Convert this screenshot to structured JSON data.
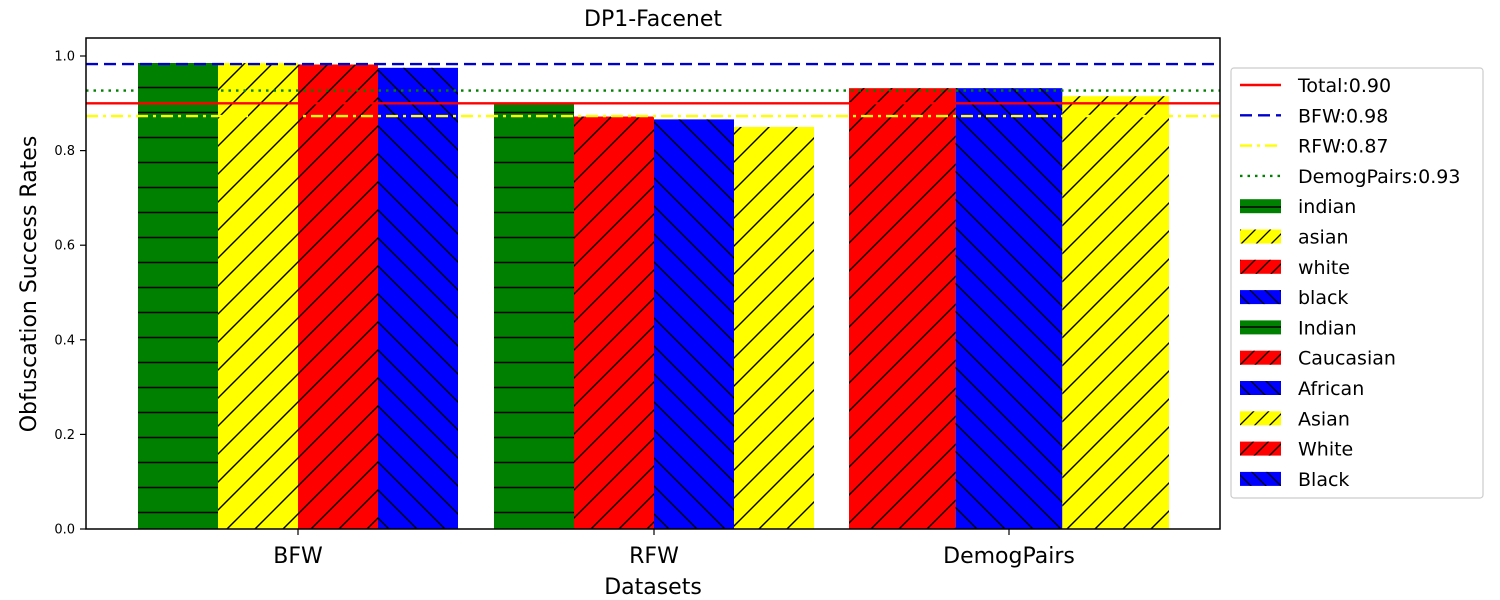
{
  "chart_data": {
    "type": "bar",
    "title": "DP1-Facenet",
    "xlabel": "Datasets",
    "ylabel": "Obfuscation Success Rates",
    "ylim": [
      0,
      1.03
    ],
    "yticks": [
      "0.0",
      "0.2",
      "0.4",
      "0.6",
      "0.8",
      "1.0"
    ],
    "grid": false,
    "legend_position": "right",
    "groups": [
      {
        "name": "BFW",
        "bars": [
          {
            "label": "indian",
            "value": 0.985,
            "color": "#008000",
            "hatch": "horizontal"
          },
          {
            "label": "asian",
            "value": 0.985,
            "color": "#ffff00",
            "hatch": "forward"
          },
          {
            "label": "white",
            "value": 0.982,
            "color": "#ff0000",
            "hatch": "forward"
          },
          {
            "label": "black",
            "value": 0.975,
            "color": "#0000ff",
            "hatch": "back"
          }
        ]
      },
      {
        "name": "RFW",
        "bars": [
          {
            "label": "Indian",
            "value": 0.9,
            "color": "#008000",
            "hatch": "horizontal"
          },
          {
            "label": "Caucasian",
            "value": 0.872,
            "color": "#ff0000",
            "hatch": "forward"
          },
          {
            "label": "African",
            "value": 0.866,
            "color": "#0000ff",
            "hatch": "back"
          },
          {
            "label": "Asian",
            "value": 0.85,
            "color": "#ffff00",
            "hatch": "forward"
          }
        ]
      },
      {
        "name": "DemogPairs",
        "bars": [
          {
            "label": "White",
            "value": 0.932,
            "color": "#ff0000",
            "hatch": "forward"
          },
          {
            "label": "Black",
            "value": 0.932,
            "color": "#0000ff",
            "hatch": "back"
          },
          {
            "label": "Asian",
            "value": 0.915,
            "color": "#ffff00",
            "hatch": "forward"
          }
        ]
      }
    ],
    "reference_lines": [
      {
        "label": "Total:0.90",
        "value": 0.9,
        "color": "#ff0000",
        "style": "solid"
      },
      {
        "label": "BFW:0.98",
        "value": 0.983,
        "color": "#0000cc",
        "style": "dashed"
      },
      {
        "label": "RFW:0.87",
        "value": 0.873,
        "color": "#ffff00",
        "style": "dashdot"
      },
      {
        "label": "DemogPairs:0.93",
        "value": 0.927,
        "color": "#008000",
        "style": "dotted"
      }
    ],
    "legend_entries": [
      {
        "label": "Total:0.90",
        "kind": "line",
        "ref": 0
      },
      {
        "label": "BFW:0.98",
        "kind": "line",
        "ref": 1
      },
      {
        "label": "RFW:0.87",
        "kind": "line",
        "ref": 2
      },
      {
        "label": "DemogPairs:0.93",
        "kind": "line",
        "ref": 3
      },
      {
        "label": "indian",
        "kind": "patch",
        "color": "#008000",
        "hatch": "horizontal"
      },
      {
        "label": "asian",
        "kind": "patch",
        "color": "#ffff00",
        "hatch": "forward"
      },
      {
        "label": "white",
        "kind": "patch",
        "color": "#ff0000",
        "hatch": "forward"
      },
      {
        "label": "black",
        "kind": "patch",
        "color": "#0000ff",
        "hatch": "back"
      },
      {
        "label": "Indian",
        "kind": "patch",
        "color": "#008000",
        "hatch": "horizontal"
      },
      {
        "label": "Caucasian",
        "kind": "patch",
        "color": "#ff0000",
        "hatch": "forward"
      },
      {
        "label": "African",
        "kind": "patch",
        "color": "#0000ff",
        "hatch": "back"
      },
      {
        "label": "Asian",
        "kind": "patch",
        "color": "#ffff00",
        "hatch": "forward"
      },
      {
        "label": "White",
        "kind": "patch",
        "color": "#ff0000",
        "hatch": "forward"
      },
      {
        "label": "Black",
        "kind": "patch",
        "color": "#0000ff",
        "hatch": "back"
      }
    ]
  }
}
